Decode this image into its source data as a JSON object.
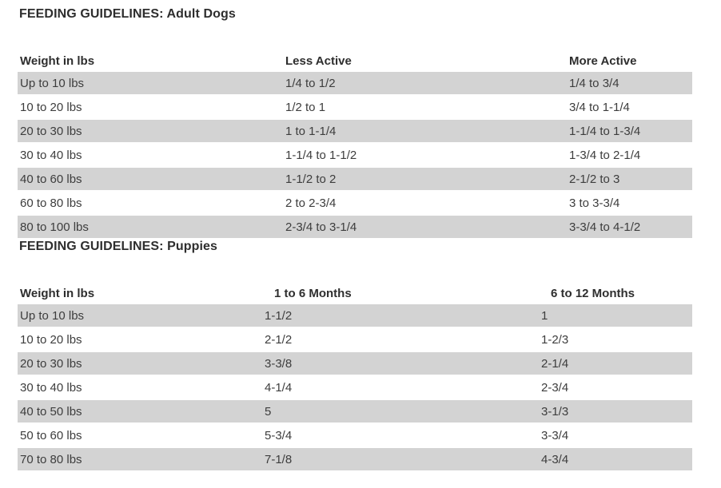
{
  "colors": {
    "row_shade": "#d3d3d3",
    "body_text": "#3d3d3d",
    "heading_text": "#2e2e2e",
    "page_background": "#ffffff"
  },
  "tables": [
    {
      "title": "FEEDING GUIDELINES: Adult Dogs",
      "columns": [
        "Weight in lbs",
        "Less Active",
        "More Active"
      ],
      "rows": [
        [
          "Up to 10 lbs",
          "1/4 to 1/2",
          "1/4 to 3/4"
        ],
        [
          "10 to 20 lbs",
          "1/2 to 1",
          "3/4 to 1-1/4"
        ],
        [
          "20 to 30 lbs",
          "1 to 1-1/4",
          "1-1/4 to 1-3/4"
        ],
        [
          "30 to 40 lbs",
          "1-1/4 to 1-1/2",
          "1-3/4 to 2-1/4"
        ],
        [
          "40 to 60 lbs",
          "1-1/2 to 2",
          "2-1/2 to 3"
        ],
        [
          "60 to 80 lbs",
          "2 to 2-3/4",
          "3 to 3-3/4"
        ],
        [
          "80 to 100 lbs",
          "2-3/4 to 3-1/4",
          "3-3/4 to 4-1/2"
        ]
      ]
    },
    {
      "title": "FEEDING GUIDELINES: Puppies",
      "columns": [
        "Weight in lbs",
        "1 to 6 Months",
        "6 to 12 Months"
      ],
      "rows": [
        [
          "Up to 10 lbs",
          "1-1/2",
          "1"
        ],
        [
          "10 to 20 lbs",
          "2-1/2",
          "1-2/3"
        ],
        [
          "20 to 30 lbs",
          "3-3/8",
          "2-1/4"
        ],
        [
          "30 to 40 lbs",
          "4-1/4",
          "2-3/4"
        ],
        [
          "40 to 50 lbs",
          "5",
          "3-1/3"
        ],
        [
          "50 to 60 lbs",
          "5-3/4",
          "3-3/4"
        ],
        [
          "70 to 80 lbs",
          "7-1/8",
          "4-3/4"
        ]
      ]
    }
  ]
}
